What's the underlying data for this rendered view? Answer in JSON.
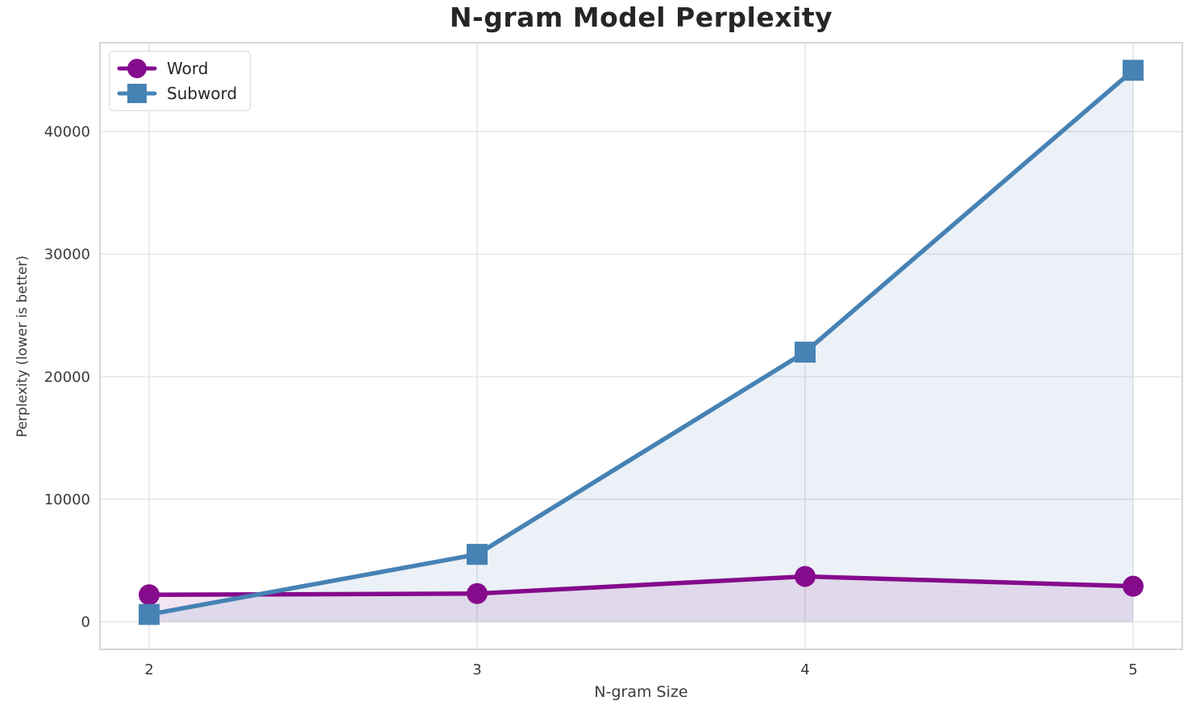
{
  "chart_data": {
    "type": "line",
    "title": "N-gram Model Perplexity",
    "xlabel": "N-gram Size",
    "ylabel": "Perplexity (lower is better)",
    "x": [
      2,
      3,
      4,
      5
    ],
    "series": [
      {
        "name": "Word",
        "marker": "circle",
        "color": "#850b8c",
        "values": [
          2200,
          2300,
          3700,
          2900
        ]
      },
      {
        "name": "Subword",
        "marker": "square",
        "color": "#4682B4",
        "values": [
          600,
          5500,
          22000,
          45000
        ]
      }
    ],
    "xticks": [
      "2",
      "3",
      "4",
      "5"
    ],
    "yticks": [
      0,
      10000,
      20000,
      30000,
      40000
    ],
    "xlim": [
      1.85,
      5.15
    ],
    "ylim": [
      -2250,
      47250
    ],
    "grid": true,
    "legend_position": "upper left",
    "fill_to_zero": true,
    "fill_opacity": 0.11,
    "grid_color": "#e8e8eb",
    "spine_color": "#d2d2d7",
    "tick_label_color": "#3a3a3a"
  }
}
